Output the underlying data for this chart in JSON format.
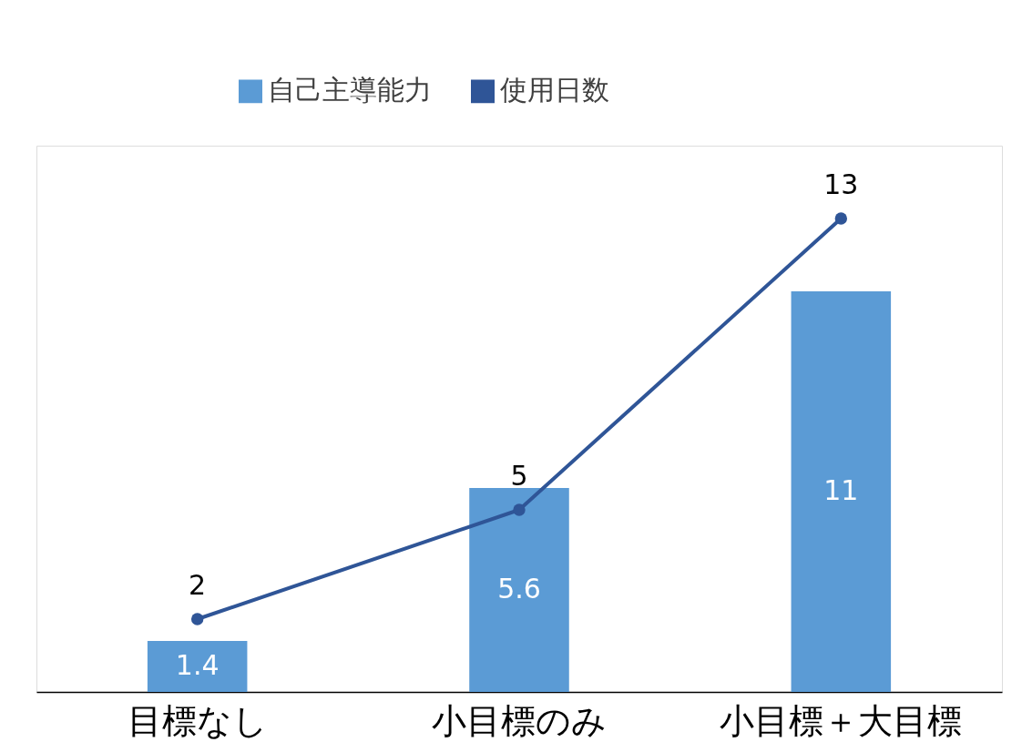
{
  "chart_data": {
    "type": "bar",
    "categories": [
      "目標なし",
      "小目標のみ",
      "小目標＋大目標"
    ],
    "series": [
      {
        "name": "自己主導能力",
        "color": "#5b9bd5",
        "values": [
          1.4,
          5.6,
          11
        ]
      },
      {
        "name": "使用日数",
        "type": "line",
        "color": "#2f5597",
        "values": [
          2,
          5,
          13
        ]
      }
    ],
    "ylim": [
      0,
      15
    ],
    "data_labels": true,
    "legend": "top",
    "grid": false,
    "marker": "circle",
    "line_style": "solid",
    "tick_labels": "x"
  }
}
